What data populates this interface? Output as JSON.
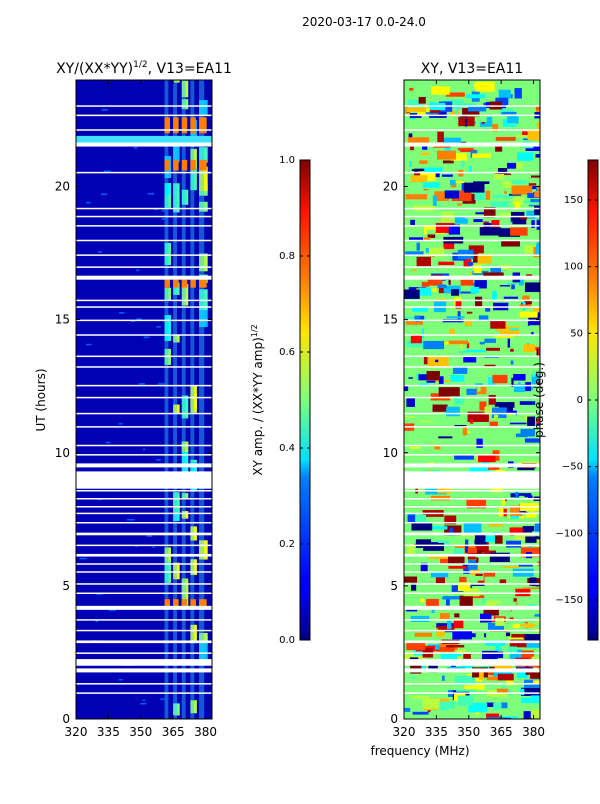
{
  "figure_title": "2020-03-17 0.0-24.0",
  "xlabel_shared": "frequency (MHz)",
  "ylabel_shared": "UT (hours)",
  "colors": {
    "background": "#ffffff",
    "axis": "#000000",
    "gap": "#ffffff"
  },
  "chart_data": [
    {
      "type": "heatmap",
      "title_main": "XY/(XX*YY)",
      "title_sup": "1/2",
      "title_tail": ", V13=EA11",
      "xlabel": "frequency (MHz)",
      "ylabel": "UT (hours)",
      "xlim": [
        320,
        383
      ],
      "ylim": [
        0,
        24
      ],
      "xticks": [
        "320",
        "335",
        "350",
        "365",
        "380"
      ],
      "xtick_values": [
        320,
        335,
        350,
        365,
        380
      ],
      "yticks": [
        "0",
        "5",
        "10",
        "15",
        "20"
      ],
      "ytick_values": [
        0,
        5,
        10,
        15,
        20
      ],
      "colorbar": {
        "label_main": "XY amp. / (XX*YY amp)",
        "label_sup": "1/2",
        "range": [
          0.0,
          1.0
        ],
        "ticks": [
          "0.0",
          "0.2",
          "0.4",
          "0.6",
          "0.8",
          "1.0"
        ],
        "tick_values": [
          0.0,
          0.2,
          0.4,
          0.6,
          0.8,
          1.0
        ]
      }
    },
    {
      "type": "heatmap",
      "title": "XY, V13=EA11",
      "xlabel": "frequency (MHz)",
      "xlim": [
        320,
        383
      ],
      "ylim": [
        0,
        24
      ],
      "xticks": [
        "320",
        "335",
        "350",
        "365",
        "380"
      ],
      "xtick_values": [
        320,
        335,
        350,
        365,
        380
      ],
      "yticks": [
        "0",
        "5",
        "10",
        "15",
        "20"
      ],
      "ytick_values": [
        0,
        5,
        10,
        15,
        20
      ],
      "colorbar": {
        "label": "phase (deg.)",
        "range": [
          -180,
          180
        ],
        "ticks": [
          "−150",
          "−100",
          "−50",
          "0",
          "50",
          "100",
          "150"
        ],
        "tick_values": [
          -150,
          -100,
          -50,
          0,
          50,
          100,
          150
        ]
      }
    }
  ],
  "flagged_time_ranges_ut": [
    [
      0.95,
      1.0
    ],
    [
      1.3,
      1.35
    ],
    [
      1.75,
      1.9
    ],
    [
      2.0,
      2.25
    ],
    [
      2.45,
      2.5
    ],
    [
      2.85,
      2.95
    ],
    [
      3.3,
      3.35
    ],
    [
      3.7,
      3.75
    ],
    [
      4.1,
      4.25
    ],
    [
      4.7,
      4.75
    ],
    [
      5.05,
      5.1
    ],
    [
      5.5,
      5.55
    ],
    [
      5.8,
      5.85
    ],
    [
      6.1,
      6.2
    ],
    [
      6.5,
      6.55
    ],
    [
      6.9,
      7.0
    ],
    [
      7.35,
      7.4
    ],
    [
      7.7,
      7.75
    ],
    [
      7.95,
      8.0
    ],
    [
      8.25,
      8.3
    ],
    [
      8.55,
      8.6
    ],
    [
      8.65,
      9.3
    ],
    [
      9.45,
      9.6
    ],
    [
      9.9,
      9.95
    ],
    [
      10.25,
      10.3
    ],
    [
      10.95,
      11.0
    ],
    [
      11.45,
      11.5
    ],
    [
      12.05,
      12.1
    ],
    [
      12.5,
      12.55
    ],
    [
      13.2,
      13.25
    ],
    [
      13.6,
      13.65
    ],
    [
      14.4,
      14.45
    ],
    [
      14.95,
      15.0
    ],
    [
      15.45,
      15.5
    ],
    [
      15.7,
      15.75
    ],
    [
      16.5,
      16.65
    ],
    [
      16.95,
      17.0
    ],
    [
      17.4,
      17.45
    ],
    [
      17.95,
      18.0
    ],
    [
      18.5,
      18.55
    ],
    [
      18.85,
      18.9
    ],
    [
      19.15,
      19.2
    ],
    [
      20.5,
      20.55
    ],
    [
      21.5,
      21.65
    ],
    [
      22.1,
      22.15
    ],
    [
      22.65,
      22.7
    ],
    [
      23.0,
      23.05
    ]
  ]
}
